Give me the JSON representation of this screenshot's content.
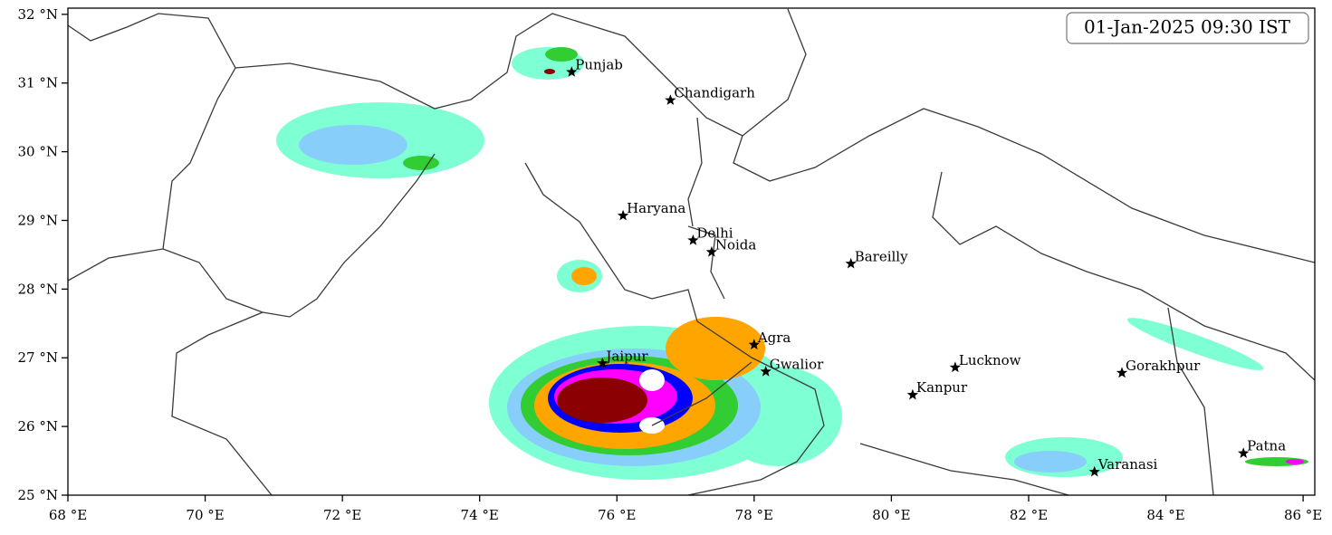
{
  "map": {
    "timestamp": "01-Jan-2025 09:30 IST",
    "xlim": [
      68,
      86.17
    ],
    "ylim": [
      25,
      32.09
    ],
    "xticks": [
      {
        "value": 68,
        "label": "68 °E"
      },
      {
        "value": 70,
        "label": "70 °E"
      },
      {
        "value": 72,
        "label": "72 °E"
      },
      {
        "value": 74,
        "label": "74 °E"
      },
      {
        "value": 76,
        "label": "76 °E"
      },
      {
        "value": 78,
        "label": "78 °E"
      },
      {
        "value": 80,
        "label": "80 °E"
      },
      {
        "value": 82,
        "label": "82 °E"
      },
      {
        "value": 84,
        "label": "84 °E"
      },
      {
        "value": 86,
        "label": "86 °E"
      }
    ],
    "yticks": [
      {
        "value": 25,
        "label": "25 °N"
      },
      {
        "value": 26,
        "label": "26 °N"
      },
      {
        "value": 27,
        "label": "27 °N"
      },
      {
        "value": 28,
        "label": "28 °N"
      },
      {
        "value": 29,
        "label": "29 °N"
      },
      {
        "value": 30,
        "label": "30 °N"
      },
      {
        "value": 31,
        "label": "31 °N"
      },
      {
        "value": 32,
        "label": "32 °N"
      }
    ],
    "cities": [
      {
        "name": "Punjab",
        "lon": 75.34,
        "lat": 31.16
      },
      {
        "name": "Chandigarh",
        "lon": 76.78,
        "lat": 30.75
      },
      {
        "name": "Haryana",
        "lon": 76.09,
        "lat": 29.07
      },
      {
        "name": "Delhi",
        "lon": 77.11,
        "lat": 28.71
      },
      {
        "name": "Noida",
        "lon": 77.38,
        "lat": 28.54
      },
      {
        "name": "Bareilly",
        "lon": 79.41,
        "lat": 28.37
      },
      {
        "name": "Agra",
        "lon": 78.0,
        "lat": 27.19
      },
      {
        "name": "Jaipur",
        "lon": 75.79,
        "lat": 26.92
      },
      {
        "name": "Gwalior",
        "lon": 78.17,
        "lat": 26.8
      },
      {
        "name": "Lucknow",
        "lon": 80.93,
        "lat": 26.86
      },
      {
        "name": "Kanpur",
        "lon": 80.31,
        "lat": 26.46
      },
      {
        "name": "Gorakhpur",
        "lon": 83.36,
        "lat": 26.78
      },
      {
        "name": "Patna",
        "lon": 85.13,
        "lat": 25.61
      },
      {
        "name": "Varanasi",
        "lon": 82.96,
        "lat": 25.34
      }
    ]
  }
}
